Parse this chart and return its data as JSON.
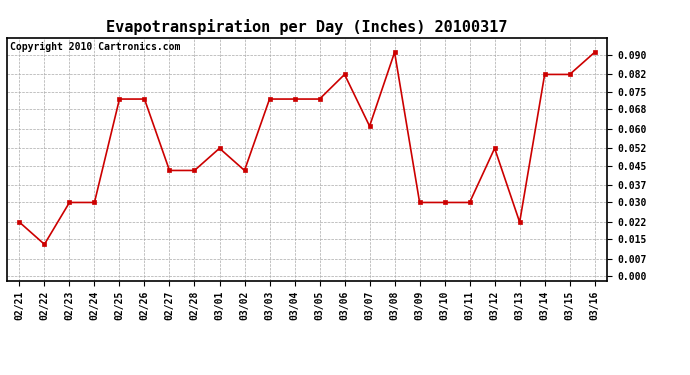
{
  "title": "Evapotranspiration per Day (Inches) 20100317",
  "copyright": "Copyright 2010 Cartronics.com",
  "labels": [
    "02/21",
    "02/22",
    "02/23",
    "02/24",
    "02/25",
    "02/26",
    "02/27",
    "02/28",
    "03/01",
    "03/02",
    "03/03",
    "03/04",
    "03/05",
    "03/06",
    "03/07",
    "03/08",
    "03/09",
    "03/10",
    "03/11",
    "03/12",
    "03/13",
    "03/14",
    "03/15",
    "03/16"
  ],
  "values": [
    0.022,
    0.013,
    0.03,
    0.03,
    0.072,
    0.072,
    0.043,
    0.043,
    0.052,
    0.043,
    0.072,
    0.072,
    0.072,
    0.082,
    0.061,
    0.091,
    0.03,
    0.03,
    0.03,
    0.052,
    0.022,
    0.082,
    0.082,
    0.091
  ],
  "ylim": [
    -0.002,
    0.097
  ],
  "yticks": [
    0.0,
    0.007,
    0.015,
    0.022,
    0.03,
    0.037,
    0.045,
    0.052,
    0.06,
    0.068,
    0.075,
    0.082,
    0.09
  ],
  "line_color": "#cc0000",
  "marker_color": "#cc0000",
  "bg_color": "#ffffff",
  "grid_color": "#aaaaaa",
  "title_fontsize": 11,
  "copyright_fontsize": 7,
  "tick_fontsize": 7
}
